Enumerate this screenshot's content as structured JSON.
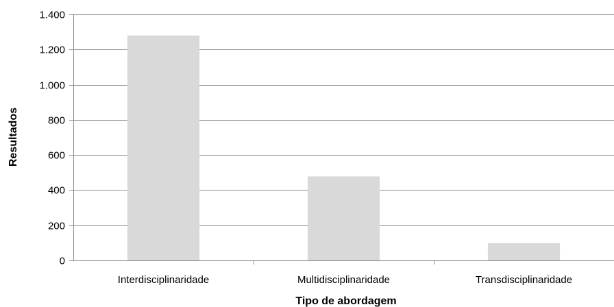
{
  "chart_data": {
    "type": "bar",
    "title": "",
    "xlabel": "Tipo de abordagem",
    "ylabel": "Resultados",
    "categories": [
      "Interdisciplinaridade",
      "Multidisciplinaridade",
      "Transdisciplinaridade"
    ],
    "values": [
      1280,
      478,
      98
    ],
    "ylim": [
      0,
      1400
    ],
    "yticks": [
      0,
      200,
      400,
      600,
      800,
      1000,
      1200,
      1400
    ],
    "ytick_labels": [
      "0",
      "200",
      "400",
      "600",
      "800",
      "1.000",
      "1.200",
      "1.400"
    ],
    "grid": true,
    "legend": "none",
    "colors": {
      "bar": "#d9d9d9",
      "grid": "#8c8c8c",
      "axis": "#8c8c8c"
    }
  }
}
